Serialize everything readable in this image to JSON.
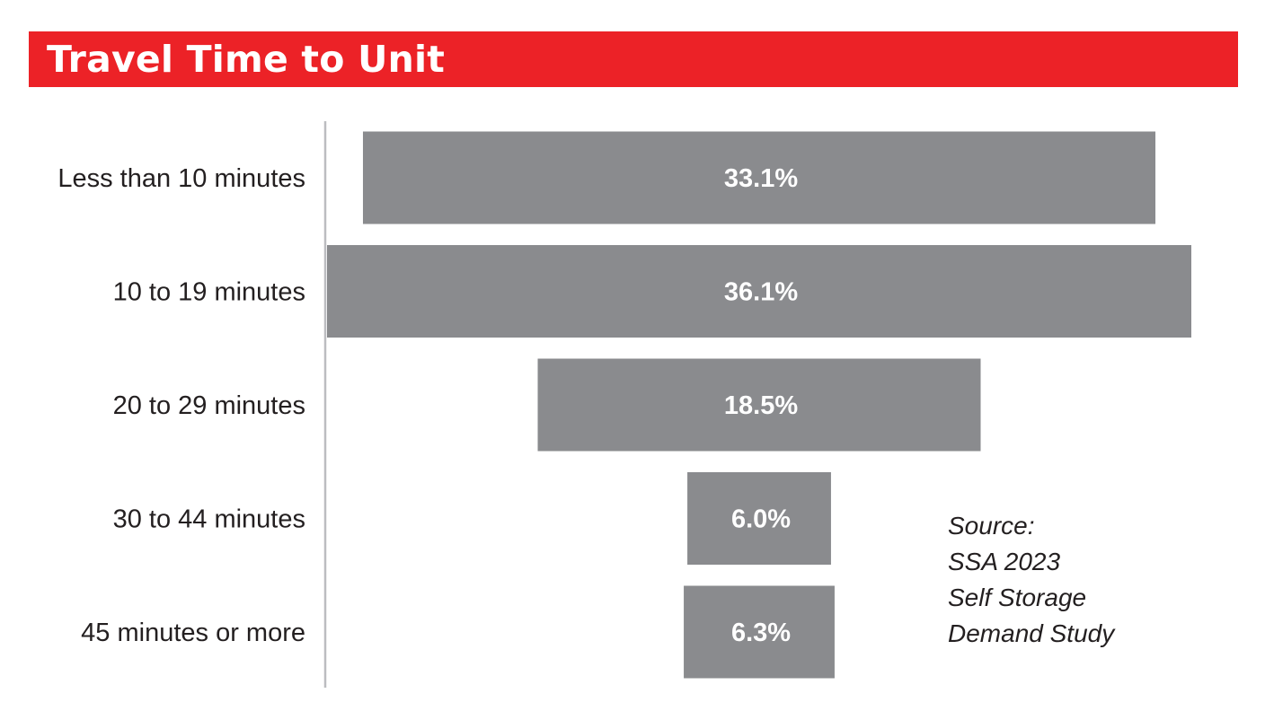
{
  "title": "Travel Time to Unit",
  "colors": {
    "banner": "#ec2227",
    "bar": "#8a8b8e",
    "axis": "#bcbdc0",
    "text": "#231f20",
    "bar_label": "#ffffff"
  },
  "source_lines": [
    "Source:",
    "SSA 2023",
    "Self Storage",
    "Demand Study"
  ],
  "chart_data": {
    "type": "bar",
    "orientation": "horizontal",
    "style": "centered funnel",
    "title": "Travel Time to Unit",
    "xlabel": "",
    "ylabel": "",
    "grid": false,
    "legend": "none",
    "categories": [
      "Less than 10 minutes",
      "10 to 19 minutes",
      "20 to 29 minutes",
      "30 to 44 minutes",
      "45 minutes or more"
    ],
    "values": [
      33.1,
      36.1,
      18.5,
      6.0,
      6.3
    ],
    "value_labels": [
      "33.1%",
      "36.1%",
      "18.5%",
      "6.0%",
      "6.3%"
    ],
    "xlim": [
      0,
      36.1
    ]
  }
}
